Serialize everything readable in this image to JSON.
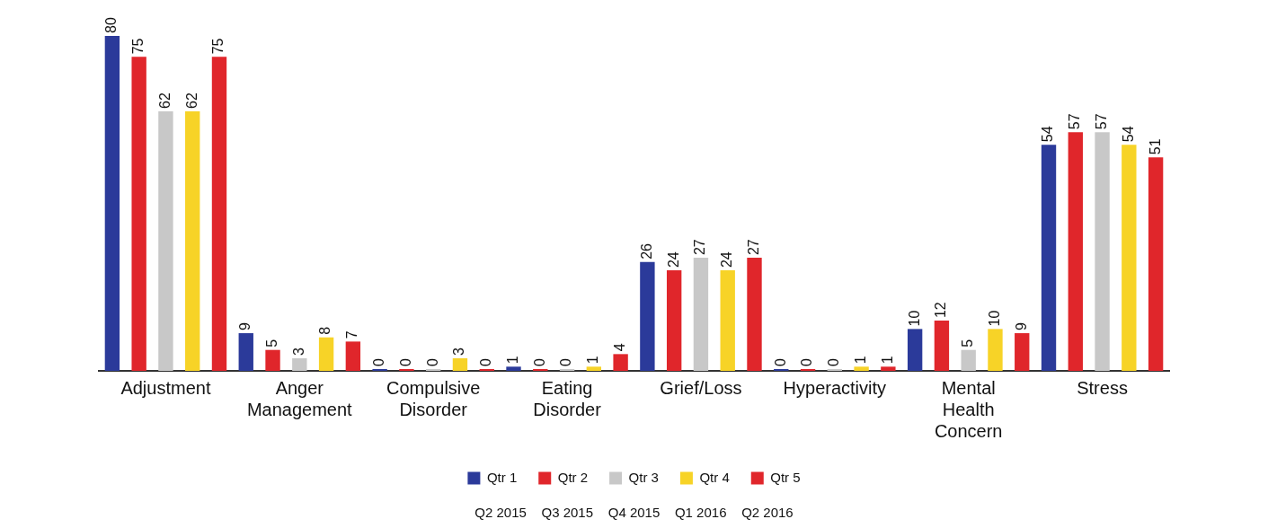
{
  "chart_data": {
    "type": "bar",
    "categories": [
      "Adjustment",
      "Anger Management",
      "Compulsive Disorder",
      "Eating Disorder",
      "Grief/Loss",
      "Hyperactivity",
      "Mental Health Concern",
      "Stress"
    ],
    "series": [
      {
        "name": "Qtr 1",
        "color": "#2b3a9a",
        "values": [
          80,
          9,
          0,
          1,
          26,
          0,
          10,
          54
        ]
      },
      {
        "name": "Qtr 2",
        "color": "#e0262b",
        "values": [
          75,
          5,
          0,
          0,
          24,
          0,
          12,
          57
        ]
      },
      {
        "name": "Qtr 3",
        "color": "#c8c8c8",
        "values": [
          62,
          3,
          0,
          0,
          27,
          0,
          5,
          57
        ]
      },
      {
        "name": "Qtr 4",
        "color": "#f7d327",
        "values": [
          62,
          8,
          3,
          1,
          24,
          1,
          10,
          54
        ]
      },
      {
        "name": "Qtr 5",
        "color": "#e0262b",
        "values": [
          75,
          7,
          0,
          4,
          27,
          1,
          9,
          51
        ]
      }
    ],
    "data_labels": true,
    "grid": false,
    "legend": "bottom",
    "annotations": [
      "Q2 2015    Q3 2015    Q4 2015    Q1 2016    Q2 2016"
    ]
  }
}
